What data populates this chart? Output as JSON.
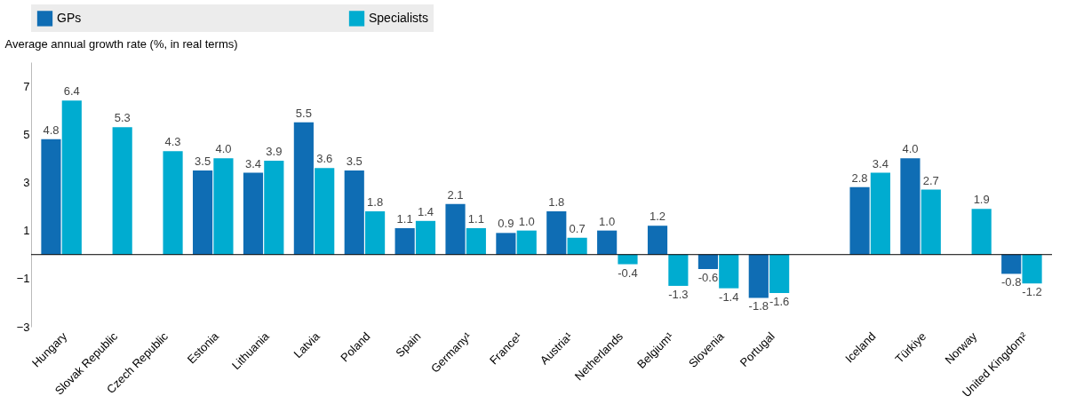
{
  "chart_data": {
    "type": "bar",
    "ylabel": "Average annual growth rate (%, in real terms)",
    "categories": [
      "Hungary",
      "Slovak Republic",
      "Czech Republic",
      "Estonia",
      "Lithuania",
      "Latvia",
      "Poland",
      "Spain",
      "Germany¹",
      "France¹",
      "Austria¹",
      "Netherlands",
      "Belgium¹",
      "Slovenia",
      "Portugal",
      null,
      "Iceland",
      "Türkiye",
      "Norway",
      "United Kingdom²"
    ],
    "series": [
      {
        "name": "GPs",
        "color": "#0f6db4",
        "values": [
          4.8,
          null,
          null,
          3.5,
          3.4,
          5.5,
          3.5,
          1.1,
          2.1,
          0.9,
          1.8,
          1.0,
          1.2,
          -0.6,
          -1.8,
          null,
          2.8,
          4.0,
          null,
          -0.8
        ],
        "value_labels": [
          "4.8",
          null,
          null,
          "3.5",
          "3.4",
          "5.5",
          "3.5",
          "1.1",
          "2.1",
          "0.9",
          "1.8",
          "1.0",
          "1.2",
          "-0.6",
          "-1.8",
          null,
          "2.8",
          "4.0",
          null,
          "-0.8"
        ]
      },
      {
        "name": "Specialists",
        "color": "#00acd0",
        "values": [
          6.4,
          5.3,
          4.3,
          4.0,
          3.9,
          3.6,
          1.8,
          1.4,
          1.1,
          1.0,
          0.7,
          -0.4,
          -1.3,
          -1.4,
          -1.6,
          null,
          3.4,
          2.7,
          1.9,
          -1.2
        ],
        "value_labels": [
          "6.4",
          "5.3",
          "4.3",
          "4.0",
          "3.9",
          "3.6",
          "1.8",
          "1.4",
          "1.1",
          "1.0",
          "0.7",
          "-0.4",
          "-1.3",
          "-1.4",
          "-1.6",
          null,
          "3.4",
          "2.7",
          "1.9",
          "-1.2"
        ]
      }
    ],
    "ylim": [
      -3,
      8
    ],
    "yticks": [
      -3,
      -1,
      1,
      3,
      5,
      7
    ],
    "ref_lines": [
      {
        "axis": "y",
        "value": 0,
        "color": "#000000"
      }
    ],
    "grid": false,
    "legend": "top"
  }
}
